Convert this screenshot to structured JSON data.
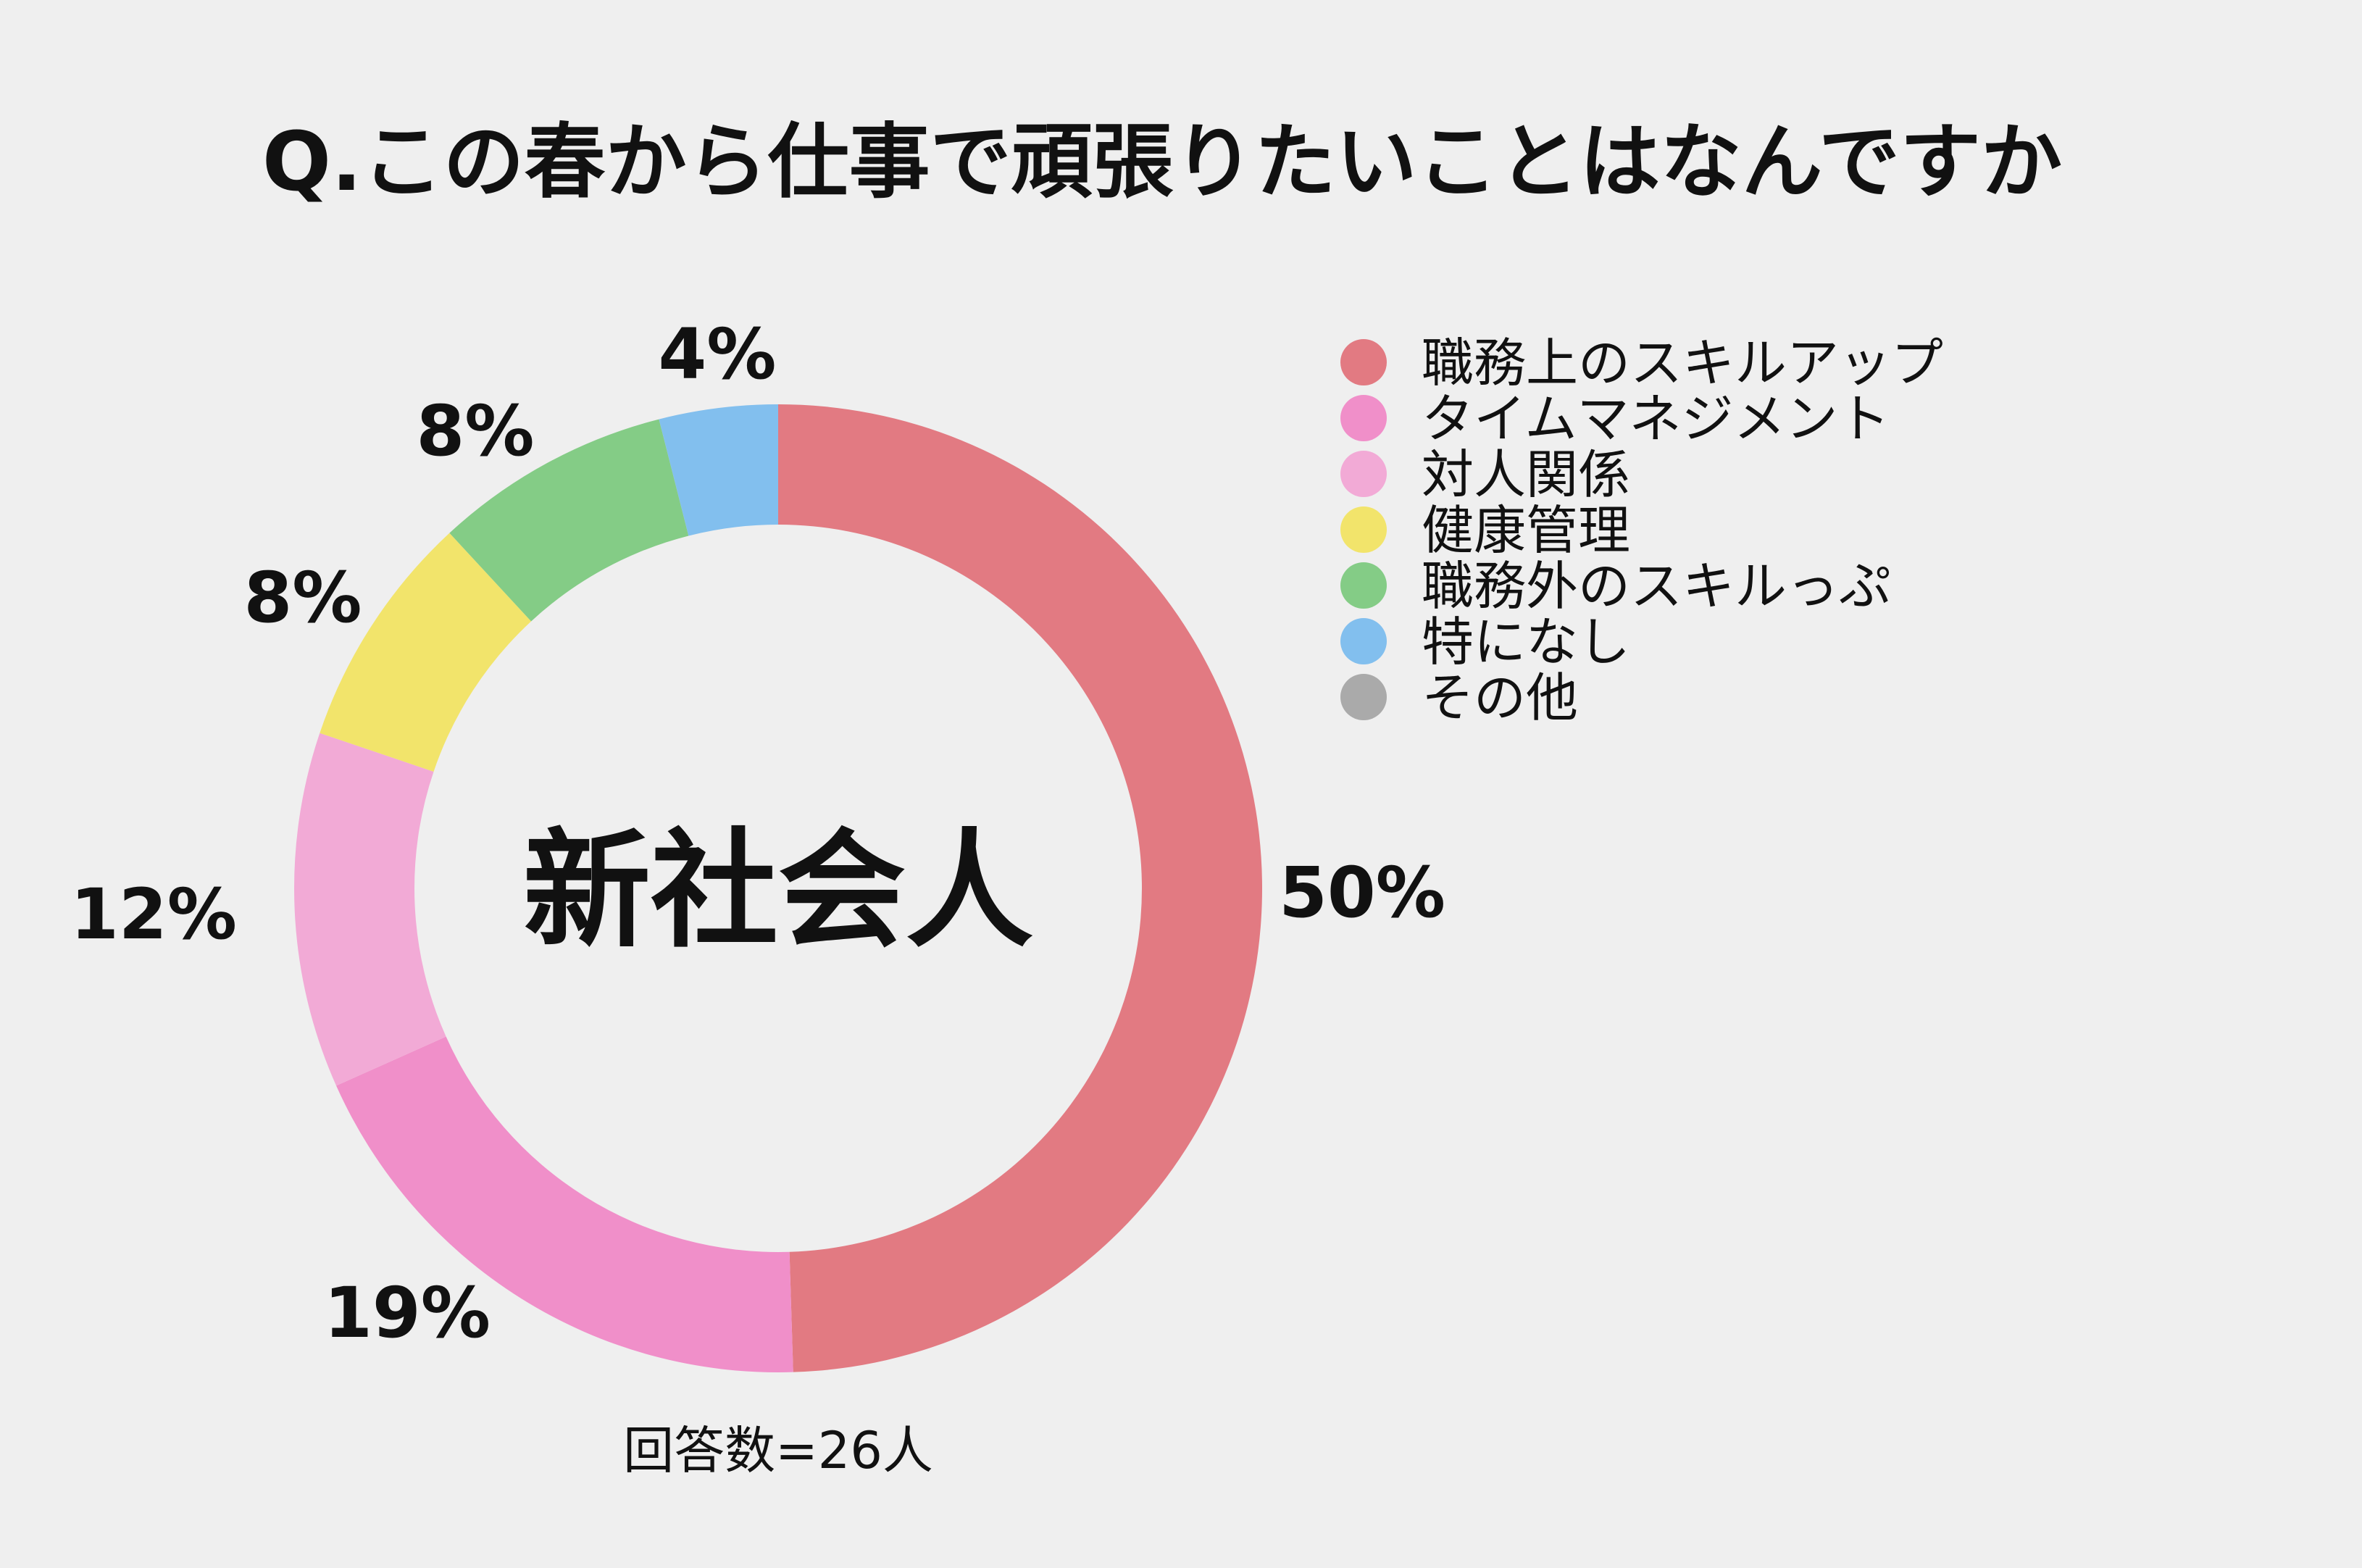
{
  "chart_data": {
    "type": "donut",
    "title": "Q.この春から仕事で頑張りたいことはなんですか",
    "center_label": "新社会人",
    "categories": [
      "職務上のスキルアップ",
      "タイムマネジメント",
      "対人関係",
      "健康管理",
      "職務外のスキルっぷ",
      "特になし",
      "その他"
    ],
    "values": [
      50,
      19,
      12,
      8,
      8,
      4,
      0
    ],
    "value_labels": [
      "50%",
      "19%",
      "12%",
      "8%",
      "8%",
      "4%",
      ""
    ],
    "colors": [
      "#e27a82",
      "#f08fc9",
      "#f2aad6",
      "#f2e46b",
      "#84cc86",
      "#82bfee",
      "#aaaaaa"
    ],
    "unit": "%",
    "legend_position": "right",
    "footnote": "回答数=26人"
  }
}
